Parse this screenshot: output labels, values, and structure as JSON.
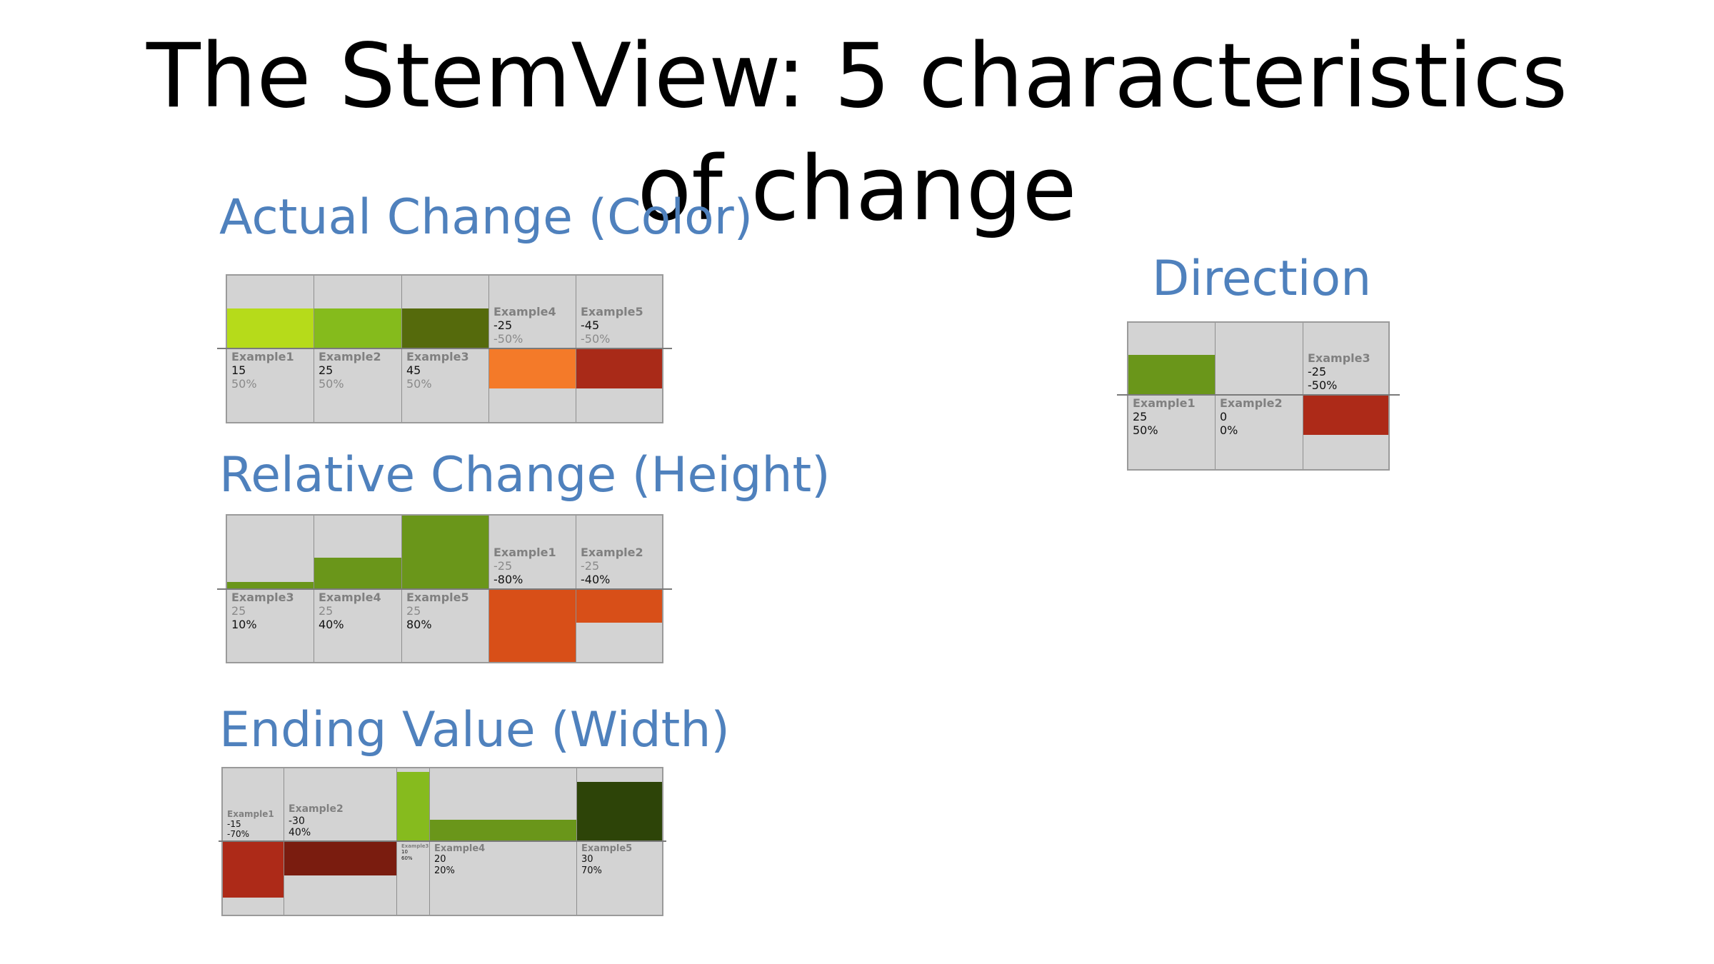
{
  "title": "The StemView: 5 characteristics of change",
  "sections": {
    "actual": {
      "label": "Actual Change (Color)",
      "columns": [
        {
          "name": "Example1",
          "change": "15",
          "pct": "50%",
          "color": "#b6db1a"
        },
        {
          "name": "Example2",
          "change": "25",
          "pct": "50%",
          "color": "#85bb1c"
        },
        {
          "name": "Example3",
          "change": "45",
          "pct": "50%",
          "color": "#556a0c"
        },
        {
          "name": "Example4",
          "change": "-25",
          "pct": "-50%",
          "color": "#f47a29"
        },
        {
          "name": "Example5",
          "change": "-45",
          "pct": "-50%",
          "color": "#a92a18"
        }
      ]
    },
    "relative": {
      "label": "Relative Change (Height)",
      "columns": [
        {
          "name": "Example3",
          "change": "25",
          "pct": "10%",
          "color": "#6a961a"
        },
        {
          "name": "Example4",
          "change": "25",
          "pct": "40%",
          "color": "#6a961a"
        },
        {
          "name": "Example5",
          "change": "25",
          "pct": "80%",
          "color": "#6a961a"
        },
        {
          "name": "Example1",
          "change": "-25",
          "pct": "-80%",
          "color": "#d84f18"
        },
        {
          "name": "Example2",
          "change": "-25",
          "pct": "-40%",
          "color": "#d84f18"
        }
      ]
    },
    "ending": {
      "label": "Ending Value (Width)",
      "columns": [
        {
          "name": "Example1",
          "change": "-15",
          "pct": "-70%",
          "color": "#ad2a18"
        },
        {
          "name": "Example2",
          "change": "-30",
          "pct": "40%",
          "color": "#7a1c0f"
        },
        {
          "name": "Example3",
          "change": "10",
          "pct": "60%",
          "color": "#86bb1e"
        },
        {
          "name": "Example4",
          "change": "20",
          "pct": "20%",
          "color": "#6a961a"
        },
        {
          "name": "Example5",
          "change": "30",
          "pct": "70%",
          "color": "#2d4408"
        }
      ]
    },
    "direction": {
      "label": "Direction",
      "columns": [
        {
          "name": "Example1",
          "change": "25",
          "pct": "50%",
          "color": "#6a961a"
        },
        {
          "name": "Example2",
          "change": "0",
          "pct": "0%",
          "color": "#6a961a"
        },
        {
          "name": "Example3",
          "change": "-25",
          "pct": "-50%",
          "color": "#ad2a18"
        }
      ]
    }
  }
}
